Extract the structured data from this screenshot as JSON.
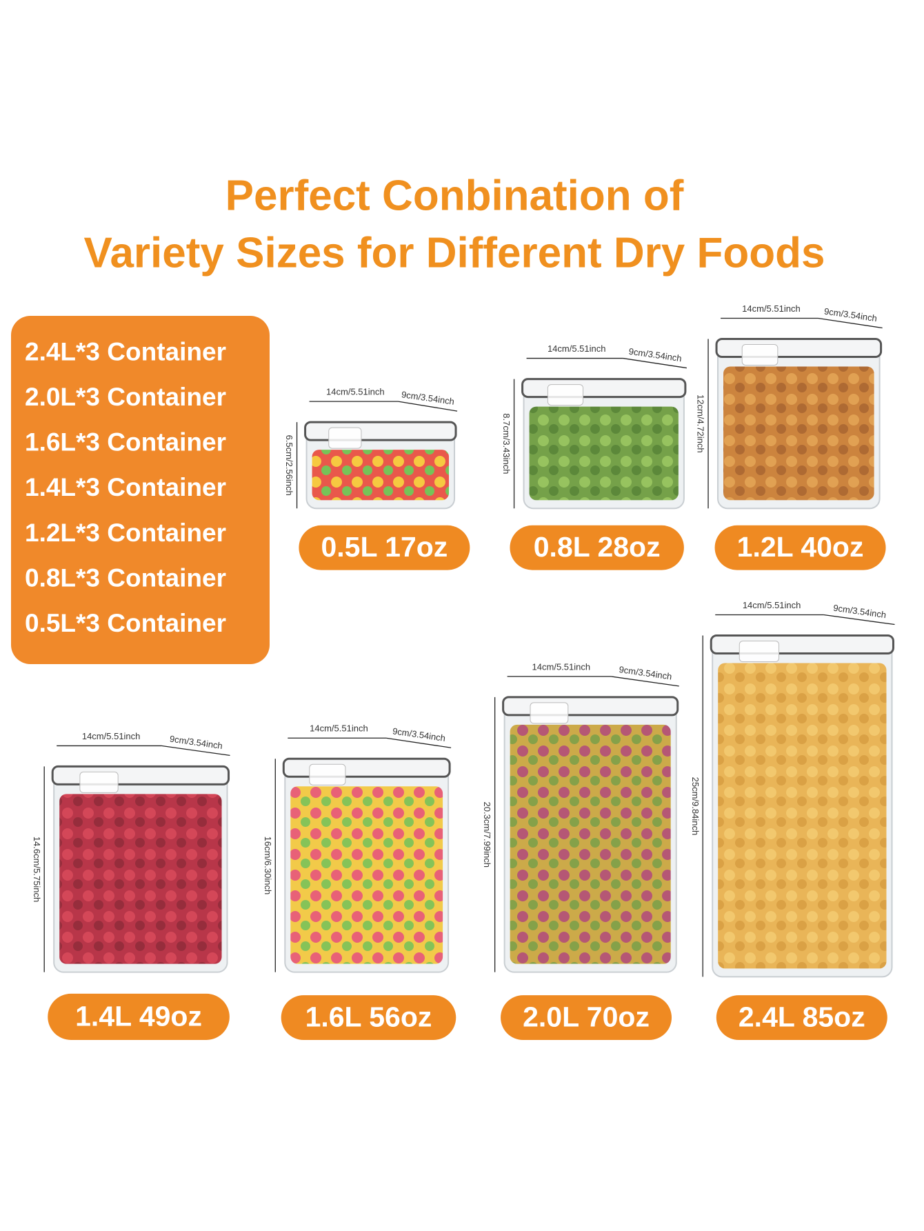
{
  "header": {
    "title_lines": [
      "Perfect Conbination of",
      "Variety Sizes for Different Dry Foods"
    ]
  },
  "set_list": [
    "2.4L*3 Container",
    "2.0L*3 Container",
    "1.6L*3 Container",
    "1.4L*3 Container",
    "1.2L*3 Container",
    "0.8L*3 Container",
    "0.5L*3 Container"
  ],
  "containers": [
    {
      "label": "0.5L 17oz",
      "width": "14cm/5.51inch",
      "depth": "9cm/3.54inch",
      "height": "6.5cm/2.56inch"
    },
    {
      "label": "0.8L 28oz",
      "width": "14cm/5.51inch",
      "depth": "9cm/3.54inch",
      "height": "8.7cm/3.43inch"
    },
    {
      "label": "1.2L 40oz",
      "width": "14cm/5.51inch",
      "depth": "9cm/3.54inch",
      "height": "12cm/4.72inch"
    },
    {
      "label": "1.4L 49oz",
      "width": "14cm/5.51inch",
      "depth": "9cm/3.54inch",
      "height": "14.6cm/5.75inch"
    },
    {
      "label": "1.6L 56oz",
      "width": "14cm/5.51inch",
      "depth": "9cm/3.54inch",
      "height": "16cm/6.30inch"
    },
    {
      "label": "2.0L 70oz",
      "width": "14cm/5.51inch",
      "depth": "9cm/3.54inch",
      "height": "20.3cm/7.99inch"
    },
    {
      "label": "2.4L 85oz",
      "width": "14cm/5.51inch",
      "depth": "9cm/3.54inch",
      "height": "25cm/9.84inch"
    }
  ]
}
